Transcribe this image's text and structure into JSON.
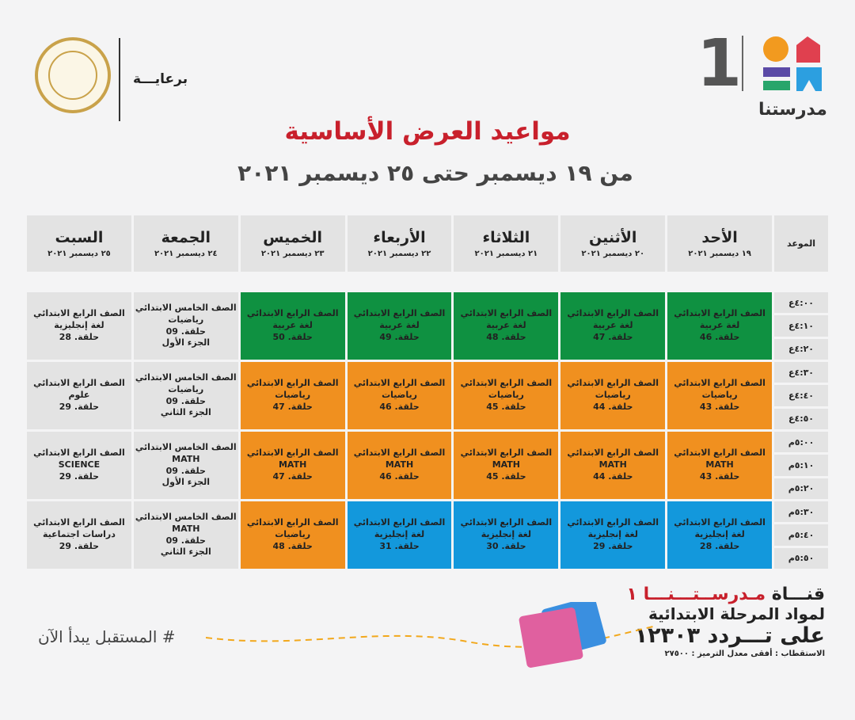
{
  "header": {
    "sponsor_label": "برعايـــة",
    "ministry_seal": "Ministry of Education and Technical Education",
    "logo_number": "1",
    "logo_name": "مدرستنا",
    "title": "مواعيد العرض الأساسية",
    "subtitle": "من ١٩ ديسمبر حتى ٢٥ ديسمبر ٢٠٢١"
  },
  "schedule": {
    "time_header": "الموعد",
    "days": [
      {
        "name": "الأحد",
        "date": "١٩ ديسمبر ٢٠٢١"
      },
      {
        "name": "الأثنين",
        "date": "٢٠ ديسمبر ٢٠٢١"
      },
      {
        "name": "الثلاثاء",
        "date": "٢١ ديسمبر ٢٠٢١"
      },
      {
        "name": "الأربعاء",
        "date": "٢٢ ديسمبر ٢٠٢١"
      },
      {
        "name": "الخميس",
        "date": "٢٣ ديسمبر ٢٠٢١"
      },
      {
        "name": "الجمعة",
        "date": "٢٤ ديسمبر ٢٠٢١"
      },
      {
        "name": "السبت",
        "date": "٢٥ ديسمبر ٢٠٢١"
      }
    ],
    "times": [
      "٤:٠٠ع",
      "٤:١٠ع",
      "٤:٢٠ع",
      "٤:٣٠ع",
      "٤:٤٠ع",
      "٤:٥٠ع",
      "٥:٠٠م",
      "٥:١٠م",
      "٥:٢٠م",
      "٥:٣٠م",
      "٥:٤٠م",
      "٥:٥٠م"
    ],
    "colors": {
      "arabic": "#0f9141",
      "math": "#f0901f",
      "english": "#1398dc",
      "other": "#e3e3e3"
    },
    "rows": [
      [
        {
          "c": "arabic",
          "lines": [
            "الصف الرابع الابتدائي",
            "لغة عربية",
            "حلقة. 46"
          ]
        },
        {
          "c": "arabic",
          "lines": [
            "الصف الرابع الابتدائي",
            "لغة عربية",
            "حلقة. 47"
          ]
        },
        {
          "c": "arabic",
          "lines": [
            "الصف الرابع الابتدائي",
            "لغة عربية",
            "حلقة. 48"
          ]
        },
        {
          "c": "arabic",
          "lines": [
            "الصف الرابع الابتدائي",
            "لغة عربية",
            "حلقة. 49"
          ]
        },
        {
          "c": "arabic",
          "lines": [
            "الصف الرابع الابتدائي",
            "لغة عربية",
            "حلقة. 50"
          ]
        },
        {
          "c": "other",
          "lines": [
            "الصف الخامس الابتدائي",
            "رياضيات",
            "حلقة. 09",
            "الجزء الأول"
          ]
        },
        {
          "c": "other",
          "lines": [
            "الصف الرابع الابتدائي",
            "لغة إنجليزية",
            "حلقة. 28"
          ]
        }
      ],
      [
        {
          "c": "math",
          "lines": [
            "الصف الرابع الابتدائي",
            "رياضيات",
            "حلقة. 43"
          ]
        },
        {
          "c": "math",
          "lines": [
            "الصف الرابع الابتدائي",
            "رياضيات",
            "حلقة. 44"
          ]
        },
        {
          "c": "math",
          "lines": [
            "الصف الرابع الابتدائي",
            "رياضيات",
            "حلقة. 45"
          ]
        },
        {
          "c": "math",
          "lines": [
            "الصف الرابع الابتدائي",
            "رياضيات",
            "حلقة. 46"
          ]
        },
        {
          "c": "math",
          "lines": [
            "الصف الرابع الابتدائي",
            "رياضيات",
            "حلقة. 47"
          ]
        },
        {
          "c": "other",
          "lines": [
            "الصف الخامس الابتدائي",
            "رياضيات",
            "حلقة. 09",
            "الجزء الثاني"
          ]
        },
        {
          "c": "other",
          "lines": [
            "الصف الرابع الابتدائي",
            "علوم",
            "حلقة. 29"
          ]
        }
      ],
      [
        {
          "c": "math",
          "lines": [
            "الصف الرابع الابتدائي",
            "MATH",
            "حلقة. 43"
          ]
        },
        {
          "c": "math",
          "lines": [
            "الصف الرابع الابتدائي",
            "MATH",
            "حلقة. 44"
          ]
        },
        {
          "c": "math",
          "lines": [
            "الصف الرابع الابتدائي",
            "MATH",
            "حلقة. 45"
          ]
        },
        {
          "c": "math",
          "lines": [
            "الصف الرابع الابتدائي",
            "MATH",
            "حلقة. 46"
          ]
        },
        {
          "c": "math",
          "lines": [
            "الصف الرابع الابتدائي",
            "MATH",
            "حلقة. 47"
          ]
        },
        {
          "c": "other",
          "lines": [
            "الصف الخامس الابتدائي",
            "MATH",
            "حلقة. 09",
            "الجزء الأول"
          ]
        },
        {
          "c": "other",
          "lines": [
            "الصف الرابع الابتدائي",
            "SCIENCE",
            "حلقة. 29"
          ]
        }
      ],
      [
        {
          "c": "english",
          "lines": [
            "الصف الرابع الابتدائي",
            "لغة إنجليزية",
            "حلقة. 28"
          ]
        },
        {
          "c": "english",
          "lines": [
            "الصف الرابع الابتدائي",
            "لغة إنجليزية",
            "حلقة. 29"
          ]
        },
        {
          "c": "english",
          "lines": [
            "الصف الرابع الابتدائي",
            "لغة إنجليزية",
            "حلقة. 30"
          ]
        },
        {
          "c": "english",
          "lines": [
            "الصف الرابع الابتدائي",
            "لغة إنجليزية",
            "حلقة. 31"
          ]
        },
        {
          "c": "math",
          "lines": [
            "الصف الرابع الابتدائي",
            "رياضيات",
            "حلقة. 48"
          ]
        },
        {
          "c": "other",
          "lines": [
            "الصف الخامس الابتدائي",
            "MATH",
            "حلقة. 09",
            "الجزء الثاني"
          ]
        },
        {
          "c": "other",
          "lines": [
            "الصف الرابع الابتدائي",
            "دراسات اجتماعية",
            "حلقة. 29"
          ]
        }
      ]
    ]
  },
  "footer": {
    "channel_prefix": "قنـــاة ",
    "channel_name": "مـدرســتـــنـــا ١",
    "line2": "لمواد المرحلة الابتدائية",
    "line3": "على تـــردد ١٢٣٠٣",
    "line4": "الاستقطاب : أفقى معدل الترميز : ٢٧٥٠٠",
    "hashtag": "# المستقبل يبدأ الآن"
  }
}
